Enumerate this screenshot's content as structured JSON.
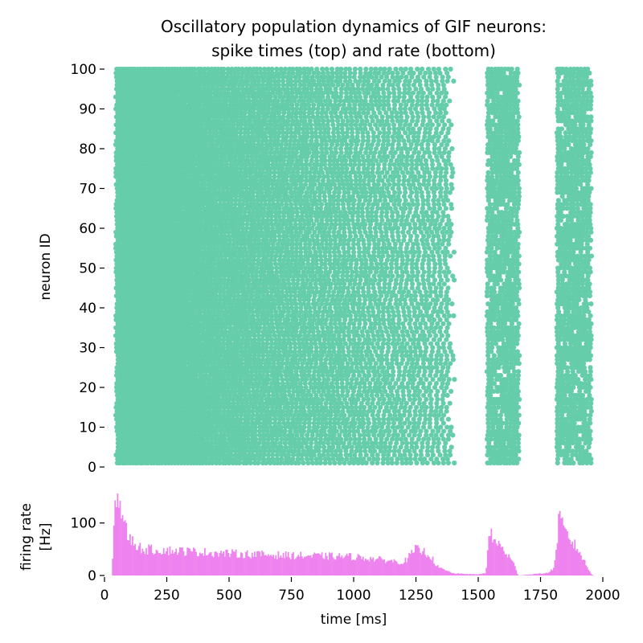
{
  "chart_data": [
    {
      "type": "scatter",
      "title_line1": "Oscillatory population dynamics of GIF neurons:",
      "title_line2": "spike times (top) and rate (bottom)",
      "xlabel": "",
      "ylabel": "neuron ID",
      "xlim": [
        0,
        2000
      ],
      "ylim": [
        0,
        100
      ],
      "yticks": [
        0,
        10,
        20,
        30,
        40,
        50,
        60,
        70,
        80,
        90,
        100
      ],
      "marker_color": "#66cdaa",
      "spike_activity": {
        "neuron_count": 100,
        "dense_until_ms": 1380,
        "burst_windows_ms": [
          [
            1535,
            1665
          ],
          [
            1815,
            1955
          ]
        ]
      }
    },
    {
      "type": "bar",
      "xlabel": "time [ms]",
      "ylabel_line1": "firing rate",
      "ylabel_line2": "[Hz]",
      "xlim": [
        0,
        2000
      ],
      "ylim": [
        0,
        170
      ],
      "xticks": [
        0,
        250,
        500,
        750,
        1000,
        1250,
        1500,
        1750,
        2000
      ],
      "yticks": [
        0,
        100
      ],
      "bar_color": "#ee82ee",
      "bin_ms": 5,
      "rate_profile": [
        {
          "t": 30,
          "rate": 0
        },
        {
          "t": 40,
          "rate": 120
        },
        {
          "t": 50,
          "rate": 165
        },
        {
          "t": 60,
          "rate": 140
        },
        {
          "t": 80,
          "rate": 95
        },
        {
          "t": 100,
          "rate": 70
        },
        {
          "t": 150,
          "rate": 50
        },
        {
          "t": 250,
          "rate": 48
        },
        {
          "t": 500,
          "rate": 42
        },
        {
          "t": 750,
          "rate": 38
        },
        {
          "t": 1000,
          "rate": 36
        },
        {
          "t": 1150,
          "rate": 28
        },
        {
          "t": 1200,
          "rate": 25
        },
        {
          "t": 1250,
          "rate": 50
        },
        {
          "t": 1300,
          "rate": 42
        },
        {
          "t": 1340,
          "rate": 15
        },
        {
          "t": 1400,
          "rate": 4
        },
        {
          "t": 1500,
          "rate": 2
        },
        {
          "t": 1530,
          "rate": 5
        },
        {
          "t": 1545,
          "rate": 80
        },
        {
          "t": 1560,
          "rate": 70
        },
        {
          "t": 1600,
          "rate": 50
        },
        {
          "t": 1640,
          "rate": 25
        },
        {
          "t": 1660,
          "rate": 0
        },
        {
          "t": 1780,
          "rate": 5
        },
        {
          "t": 1805,
          "rate": 15
        },
        {
          "t": 1825,
          "rate": 110
        },
        {
          "t": 1850,
          "rate": 80
        },
        {
          "t": 1900,
          "rate": 50
        },
        {
          "t": 1950,
          "rate": 5
        },
        {
          "t": 1960,
          "rate": 0
        }
      ]
    }
  ]
}
